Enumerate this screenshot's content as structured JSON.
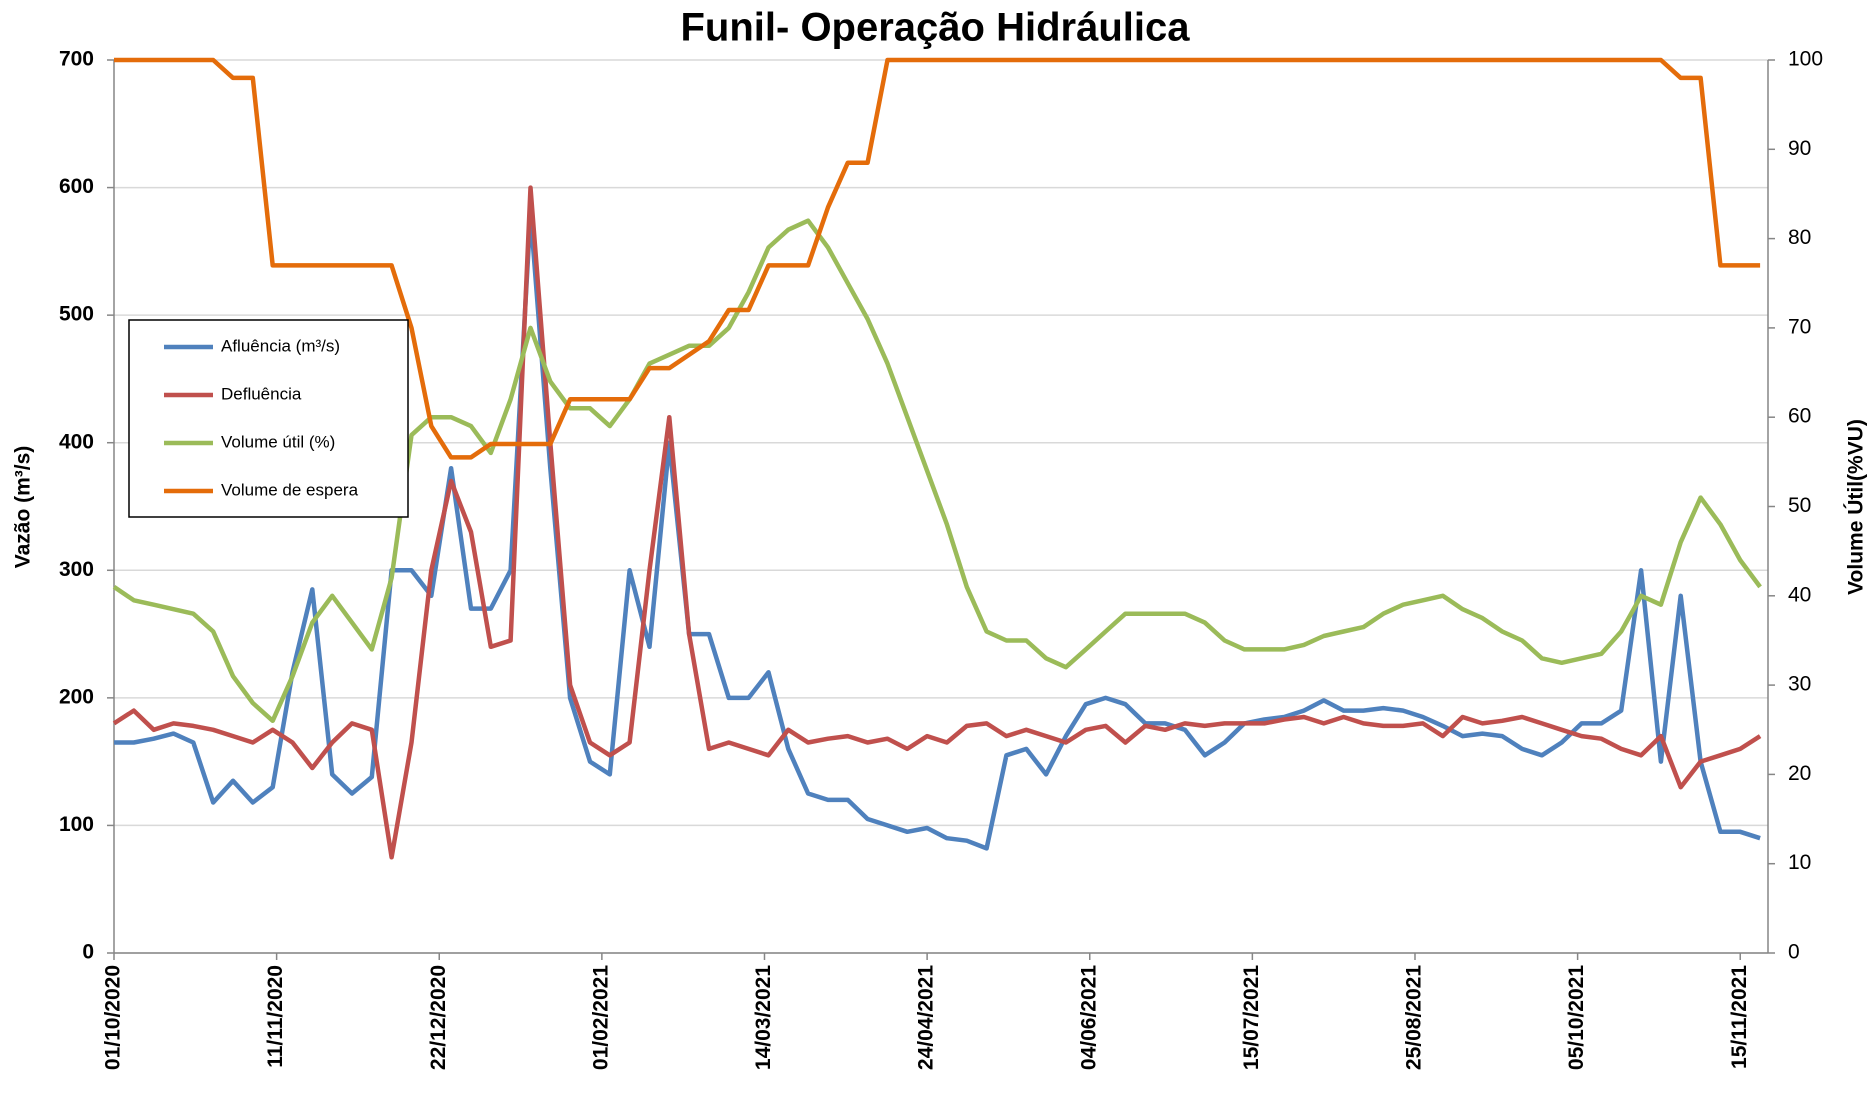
{
  "chart_data": {
    "type": "line",
    "title": "Funil- Operação Hidráulica",
    "ylabel": "Vazão (m³/s)",
    "y2label": "Volume Útil(%VU)",
    "x": [
      "01/10/2020",
      "06/10/2020",
      "11/10/2020",
      "16/10/2020",
      "21/10/2020",
      "26/10/2020",
      "31/10/2020",
      "05/11/2020",
      "10/11/2020",
      "15/11/2020",
      "20/11/2020",
      "25/11/2020",
      "30/11/2020",
      "05/12/2020",
      "10/12/2020",
      "15/12/2020",
      "20/12/2020",
      "25/12/2020",
      "30/12/2020",
      "04/01/2021",
      "09/01/2021",
      "14/01/2021",
      "19/01/2021",
      "24/01/2021",
      "29/01/2021",
      "03/02/2021",
      "08/02/2021",
      "13/02/2021",
      "18/02/2021",
      "23/02/2021",
      "28/02/2021",
      "05/03/2021",
      "10/03/2021",
      "15/03/2021",
      "20/03/2021",
      "25/03/2021",
      "30/03/2021",
      "04/04/2021",
      "09/04/2021",
      "14/04/2021",
      "19/04/2021",
      "24/04/2021",
      "29/04/2021",
      "04/05/2021",
      "09/05/2021",
      "14/05/2021",
      "19/05/2021",
      "24/05/2021",
      "29/05/2021",
      "03/06/2021",
      "08/06/2021",
      "13/06/2021",
      "18/06/2021",
      "23/06/2021",
      "28/06/2021",
      "03/07/2021",
      "08/07/2021",
      "13/07/2021",
      "18/07/2021",
      "23/07/2021",
      "28/07/2021",
      "02/08/2021",
      "07/08/2021",
      "12/08/2021",
      "17/08/2021",
      "22/08/2021",
      "27/08/2021",
      "01/09/2021",
      "06/09/2021",
      "11/09/2021",
      "16/09/2021",
      "21/09/2021",
      "26/09/2021",
      "01/10/2021",
      "06/10/2021",
      "11/10/2021",
      "16/10/2021",
      "21/10/2021",
      "26/10/2021",
      "31/10/2021",
      "05/11/2021",
      "10/11/2021",
      "15/11/2021",
      "20/11/2021"
    ],
    "xlim": [
      "01/10/2020",
      "22/11/2021"
    ],
    "xticks": [
      "01/10/2020",
      "11/11/2020",
      "22/12/2020",
      "01/02/2021",
      "14/03/2021",
      "24/04/2021",
      "04/06/2021",
      "15/07/2021",
      "25/08/2021",
      "05/10/2021",
      "15/11/2021"
    ],
    "ylim": [
      0,
      700
    ],
    "yticks": [
      0,
      100,
      200,
      300,
      400,
      500,
      600,
      700
    ],
    "y2lim": [
      0,
      100
    ],
    "y2ticks": [
      0,
      10,
      20,
      30,
      40,
      50,
      60,
      70,
      80,
      90,
      100
    ],
    "grid": true,
    "legend": "left",
    "series": [
      {
        "name": "Afluência (m³/s)",
        "color": "#4f81bd",
        "values": [
          165,
          165,
          168,
          172,
          165,
          118,
          135,
          118,
          130,
          220,
          285,
          140,
          125,
          138,
          300,
          300,
          280,
          380,
          270,
          270,
          300,
          580,
          380,
          200,
          150,
          140,
          300,
          240,
          400,
          250,
          250,
          200,
          200,
          220,
          160,
          125,
          120,
          120,
          105,
          100,
          95,
          98,
          90,
          88,
          82,
          155,
          160,
          140,
          170,
          195,
          200,
          195,
          180,
          180,
          175,
          155,
          165,
          180,
          183,
          185,
          190,
          198,
          190,
          190,
          192,
          190,
          185,
          178,
          170,
          172,
          170,
          160,
          155,
          165,
          180,
          180,
          190,
          300,
          150,
          280,
          150,
          95,
          95,
          90
        ]
      },
      {
        "name": "Defluência",
        "color": "#c0504d",
        "values": [
          180,
          190,
          175,
          180,
          178,
          175,
          170,
          165,
          175,
          165,
          145,
          165,
          180,
          175,
          75,
          165,
          300,
          370,
          330,
          240,
          245,
          600,
          400,
          210,
          165,
          155,
          165,
          300,
          420,
          250,
          160,
          165,
          160,
          155,
          175,
          165,
          168,
          170,
          165,
          168,
          160,
          170,
          165,
          178,
          180,
          170,
          175,
          170,
          165,
          175,
          178,
          165,
          178,
          175,
          180,
          178,
          180,
          180,
          180,
          183,
          185,
          180,
          185,
          180,
          178,
          178,
          180,
          170,
          185,
          180,
          182,
          185,
          180,
          175,
          170,
          168,
          160,
          155,
          170,
          130,
          150,
          155,
          160,
          170
        ]
      },
      {
        "name": "Volume útil (%)",
        "color": "#9bbb59",
        "axis": "y2",
        "values": [
          41,
          39.5,
          39,
          38.5,
          38,
          36,
          31,
          28,
          26,
          31,
          37,
          40,
          37,
          34,
          42,
          58,
          60,
          60,
          59,
          56,
          62,
          70,
          64,
          61,
          61,
          59,
          62,
          66,
          67,
          68,
          68,
          70,
          74,
          79,
          81,
          82,
          79,
          75,
          71,
          66,
          60,
          54,
          48,
          41,
          36,
          35,
          35,
          33,
          32,
          34,
          36,
          38,
          38,
          38,
          38,
          37,
          35,
          34,
          34,
          34,
          34.5,
          35.5,
          36,
          36.5,
          38,
          39,
          39.5,
          40,
          38.5,
          37.5,
          36,
          35,
          33,
          32.5,
          33,
          33.5,
          36,
          40,
          39,
          46,
          51,
          48,
          44,
          41
        ]
      },
      {
        "name": "Volume de espera",
        "color": "#e46c0a",
        "axis": "y2",
        "values": [
          100,
          100,
          100,
          100,
          100,
          100,
          98,
          98,
          77,
          77,
          77,
          77,
          77,
          77,
          77,
          70,
          59,
          55.5,
          55.5,
          57,
          57,
          57,
          57,
          62,
          62,
          62,
          62,
          65.5,
          65.5,
          67,
          68.5,
          72,
          72,
          77,
          77,
          77,
          83.5,
          88.5,
          88.5,
          100,
          100,
          100,
          100,
          100,
          100,
          100,
          100,
          100,
          100,
          100,
          100,
          100,
          100,
          100,
          100,
          100,
          100,
          100,
          100,
          100,
          100,
          100,
          100,
          100,
          100,
          100,
          100,
          100,
          100,
          100,
          100,
          100,
          100,
          100,
          100,
          100,
          100,
          100,
          100,
          98,
          98,
          77,
          77,
          77
        ]
      }
    ]
  }
}
